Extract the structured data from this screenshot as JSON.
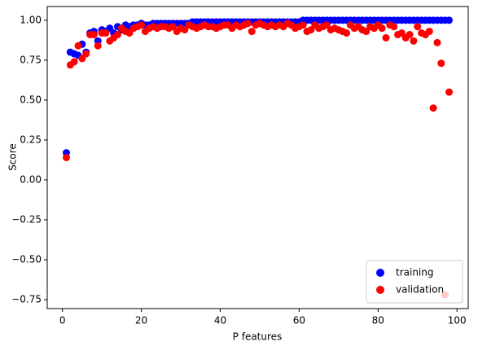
{
  "chart_data": {
    "type": "scatter",
    "xlabel": "P features",
    "ylabel": "Score",
    "x": [
      1,
      2,
      3,
      4,
      5,
      6,
      7,
      8,
      9,
      10,
      11,
      12,
      13,
      14,
      15,
      16,
      17,
      18,
      19,
      20,
      21,
      22,
      23,
      24,
      25,
      26,
      27,
      28,
      29,
      30,
      31,
      32,
      33,
      34,
      35,
      36,
      37,
      38,
      39,
      40,
      41,
      42,
      43,
      44,
      45,
      46,
      47,
      48,
      49,
      50,
      51,
      52,
      53,
      54,
      55,
      56,
      57,
      58,
      59,
      60,
      61,
      62,
      63,
      64,
      65,
      66,
      67,
      68,
      69,
      70,
      71,
      72,
      73,
      74,
      75,
      76,
      77,
      78,
      79,
      80,
      81,
      82,
      83,
      84,
      85,
      86,
      87,
      88,
      89,
      90,
      91,
      92,
      93,
      94,
      95,
      96,
      97,
      98
    ],
    "series": [
      {
        "name": "training",
        "color": "#0000ff",
        "values": [
          0.17,
          0.8,
          0.79,
          0.78,
          0.85,
          0.8,
          0.92,
          0.93,
          0.87,
          0.94,
          0.93,
          0.95,
          0.92,
          0.96,
          0.94,
          0.97,
          0.96,
          0.97,
          0.97,
          0.98,
          0.97,
          0.97,
          0.98,
          0.98,
          0.98,
          0.98,
          0.98,
          0.98,
          0.98,
          0.98,
          0.98,
          0.98,
          0.99,
          0.99,
          0.99,
          0.99,
          0.99,
          0.99,
          0.99,
          0.99,
          0.99,
          0.99,
          0.99,
          0.99,
          0.99,
          0.99,
          0.99,
          0.99,
          0.99,
          0.99,
          0.99,
          0.99,
          0.99,
          0.99,
          0.99,
          0.99,
          0.99,
          0.99,
          0.99,
          0.99,
          1.0,
          1.0,
          1.0,
          1.0,
          1.0,
          1.0,
          1.0,
          1.0,
          1.0,
          1.0,
          1.0,
          1.0,
          1.0,
          1.0,
          1.0,
          1.0,
          1.0,
          1.0,
          1.0,
          1.0,
          1.0,
          1.0,
          1.0,
          1.0,
          1.0,
          1.0,
          1.0,
          1.0,
          1.0,
          1.0,
          1.0,
          1.0,
          1.0,
          1.0,
          1.0,
          1.0,
          1.0,
          1.0
        ]
      },
      {
        "name": "validation",
        "color": "#ff0000",
        "values": [
          0.14,
          0.72,
          0.74,
          0.84,
          0.76,
          0.79,
          0.91,
          0.91,
          0.84,
          0.92,
          0.92,
          0.87,
          0.89,
          0.91,
          0.95,
          0.93,
          0.92,
          0.95,
          0.96,
          0.97,
          0.93,
          0.95,
          0.96,
          0.95,
          0.96,
          0.96,
          0.95,
          0.96,
          0.93,
          0.95,
          0.94,
          0.97,
          0.96,
          0.95,
          0.96,
          0.97,
          0.96,
          0.96,
          0.95,
          0.96,
          0.97,
          0.97,
          0.95,
          0.97,
          0.96,
          0.97,
          0.98,
          0.93,
          0.97,
          0.98,
          0.97,
          0.96,
          0.97,
          0.96,
          0.97,
          0.96,
          0.98,
          0.97,
          0.95,
          0.96,
          0.97,
          0.93,
          0.94,
          0.97,
          0.95,
          0.96,
          0.97,
          0.94,
          0.95,
          0.94,
          0.93,
          0.92,
          0.97,
          0.95,
          0.96,
          0.94,
          0.93,
          0.96,
          0.95,
          0.97,
          0.95,
          0.89,
          0.97,
          0.96,
          0.91,
          0.92,
          0.89,
          0.91,
          0.87,
          0.96,
          0.92,
          0.91,
          0.93,
          0.45,
          0.86,
          0.73,
          -0.72,
          0.55
        ]
      }
    ],
    "xlim": [
      -3.85,
      102.85
    ],
    "ylim": [
      -0.806,
      1.086
    ],
    "xticks": [
      0,
      20,
      40,
      60,
      80,
      100
    ],
    "yticks": [
      {
        "value": -0.75,
        "label": "−0.75"
      },
      {
        "value": -0.5,
        "label": "−0.50"
      },
      {
        "value": -0.25,
        "label": "−0.25"
      },
      {
        "value": 0,
        "label": "0.00"
      },
      {
        "value": 0.25,
        "label": "0.25"
      },
      {
        "value": 0.5,
        "label": "0.50"
      },
      {
        "value": 0.75,
        "label": "0.75"
      },
      {
        "value": 1,
        "label": "1.00"
      }
    ],
    "legend": "lower right",
    "grid": false
  }
}
